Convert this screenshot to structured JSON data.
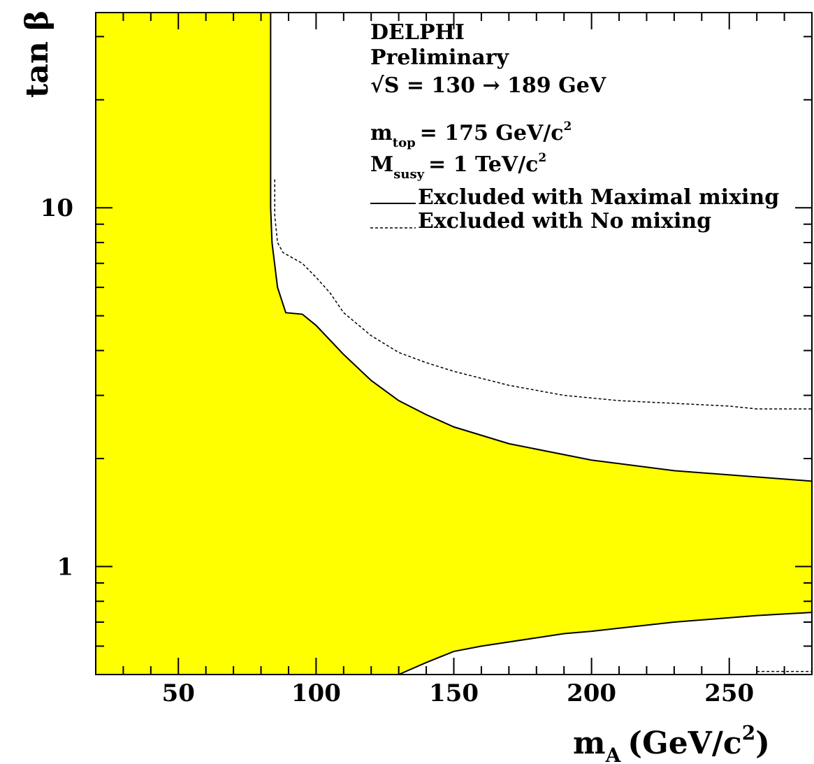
{
  "chart_data": {
    "type": "area",
    "x_axis": {
      "label": "m",
      "label_subscript": "A",
      "label_unit": "(GeV/c",
      "label_unit_sup": "2",
      "label_unit_end": ")",
      "range": [
        20,
        280
      ],
      "scale": "linear",
      "ticks": [
        50,
        100,
        150,
        200,
        250
      ],
      "tick_labels": [
        "50",
        "100",
        "150",
        "200",
        "250"
      ]
    },
    "y_axis": {
      "label": "tan β",
      "range": [
        0.5,
        35
      ],
      "scale": "log",
      "ticks": [
        1,
        10
      ],
      "tick_labels": [
        "1",
        "10"
      ]
    },
    "annotations": {
      "experiment": "DELPHI",
      "status": "Preliminary",
      "energy": "√S = 130 → 189 GeV",
      "mtop_main": "m",
      "mtop_sub": "top",
      "mtop_value": "= 175 GeV/c",
      "mtop_sup": "2",
      "msusy_main": "M",
      "msusy_sub": "susy",
      "msusy_value": "= 1 TeV/c",
      "msusy_sup": "2"
    },
    "legend": [
      {
        "label": "Excluded with Maximal mixing",
        "style": "solid"
      },
      {
        "label": "Excluded with No mixing",
        "style": "dashed"
      }
    ],
    "grid": false,
    "fill_color": "#ffff00",
    "line_color": "#000000",
    "excluded_region_max_mixing": {
      "upper_boundary": [
        [
          83.5,
          35
        ],
        [
          83.5,
          10
        ],
        [
          84,
          8
        ],
        [
          86,
          6
        ],
        [
          89,
          5.1
        ],
        [
          95,
          5.05
        ],
        [
          100,
          4.7
        ],
        [
          110,
          3.9
        ],
        [
          120,
          3.3
        ],
        [
          130,
          2.9
        ],
        [
          140,
          2.65
        ],
        [
          150,
          2.45
        ],
        [
          170,
          2.2
        ],
        [
          200,
          1.98
        ],
        [
          230,
          1.85
        ],
        [
          280,
          1.73
        ]
      ],
      "lower_boundary": [
        [
          130,
          0.5
        ],
        [
          140,
          0.54
        ],
        [
          150,
          0.58
        ],
        [
          160,
          0.6
        ],
        [
          190,
          0.65
        ],
        [
          200,
          0.66
        ],
        [
          230,
          0.7
        ],
        [
          260,
          0.73
        ],
        [
          280,
          0.745
        ]
      ]
    },
    "no_mixing_boundary": [
      [
        85,
        12
      ],
      [
        85,
        9.5
      ],
      [
        86,
        8
      ],
      [
        88,
        7.5
      ],
      [
        95,
        7
      ],
      [
        100,
        6.4
      ],
      [
        105,
        5.8
      ],
      [
        110,
        5.1
      ],
      [
        120,
        4.4
      ],
      [
        130,
        3.95
      ],
      [
        140,
        3.7
      ],
      [
        150,
        3.5
      ],
      [
        170,
        3.2
      ],
      [
        190,
        3.0
      ],
      [
        210,
        2.9
      ],
      [
        230,
        2.85
      ],
      [
        250,
        2.8
      ],
      [
        260,
        2.75
      ],
      [
        280,
        2.75
      ]
    ],
    "no_mixing_lower_segment": [
      [
        260,
        0.51
      ],
      [
        280,
        0.51
      ]
    ]
  }
}
